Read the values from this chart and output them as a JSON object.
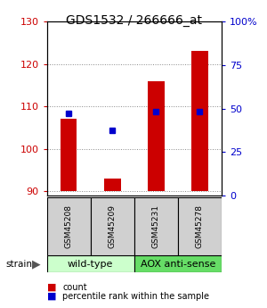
{
  "title": "GDS1532 / 266666_at",
  "samples": [
    "GSM45208",
    "GSM45209",
    "GSM45231",
    "GSM45278"
  ],
  "count_values": [
    107,
    93,
    116,
    123
  ],
  "percentile_pct": [
    45,
    35,
    46,
    46
  ],
  "ylim_left": [
    89,
    130
  ],
  "ylim_right": [
    0,
    100
  ],
  "yticks_left": [
    90,
    100,
    110,
    120,
    130
  ],
  "yticks_right": [
    0,
    25,
    50,
    75,
    100
  ],
  "ytick_labels_right": [
    "0",
    "25",
    "50",
    "75",
    "100%"
  ],
  "bar_color": "#cc0000",
  "dot_color": "#0000cc",
  "groups": [
    {
      "label": "wild-type",
      "indices": [
        0,
        1
      ],
      "color": "#ccffcc"
    },
    {
      "label": "AOX anti-sense",
      "indices": [
        2,
        3
      ],
      "color": "#66dd66"
    }
  ],
  "strain_label": "strain",
  "legend_count": "count",
  "legend_percentile": "percentile rank within the sample",
  "left_tick_color": "#cc0000",
  "right_tick_color": "#0000cc",
  "base_value": 90,
  "grid_color": "#888888",
  "box_color": "#d0d0d0"
}
